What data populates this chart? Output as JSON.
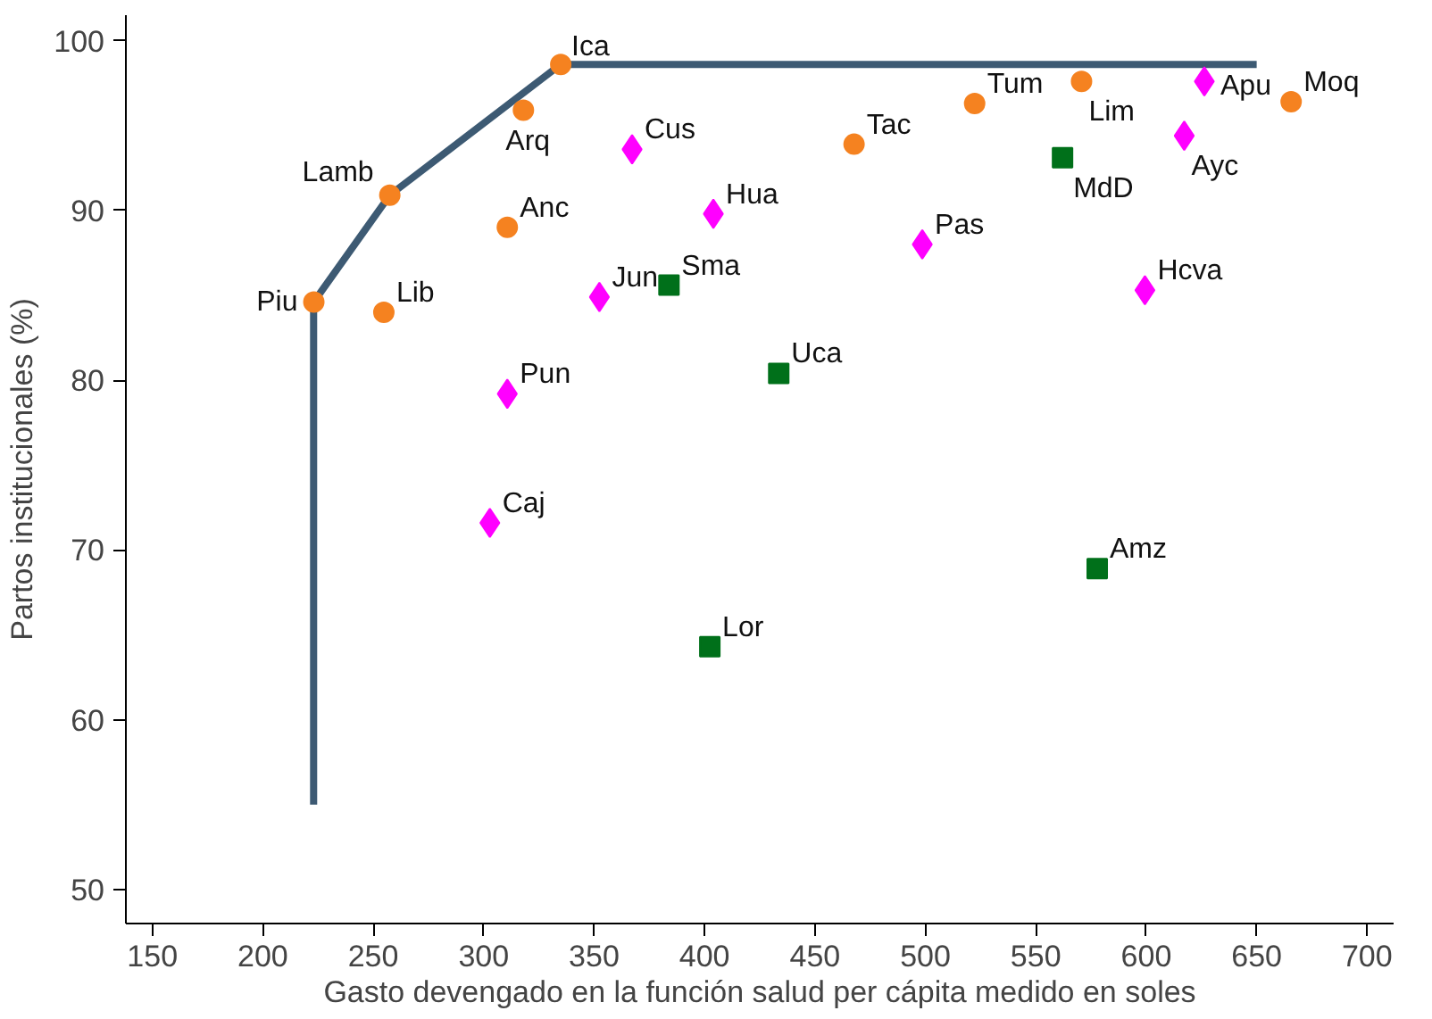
{
  "chart_data": {
    "type": "scatter",
    "xlabel": "Gasto devengado en la función salud per cápita medido en soles",
    "ylabel": "Partos institucionales (%)",
    "xlim": [
      138,
      712
    ],
    "ylim": [
      48,
      101.5
    ],
    "xticks": [
      150,
      200,
      250,
      300,
      350,
      400,
      450,
      500,
      550,
      600,
      650,
      700
    ],
    "yticks": [
      50,
      60,
      70,
      80,
      90,
      100
    ],
    "grid": false,
    "series": [
      {
        "type": "line",
        "color": "#3d5a73",
        "line_style": "solid",
        "marker": "none",
        "x": [
          223,
          223,
          257.5,
          334.9,
          650
        ],
        "values": [
          55,
          84.6,
          90.9,
          98.6,
          98.6
        ]
      },
      {
        "color": "#f58220",
        "marker": "circle",
        "x": [
          223.1,
          254.8,
          257.5,
          310.7,
          318,
          334.9,
          467.7,
          522.3,
          570.7,
          665.6
        ],
        "values": [
          84.6,
          84.0,
          90.9,
          89.0,
          95.9,
          98.6,
          93.9,
          96.3,
          97.6,
          96.4
        ]
      },
      {
        "color": "#ff00ff",
        "marker": "diamond",
        "x": [
          367.2,
          404,
          352.4,
          310.7,
          302.8,
          498.6,
          626.3,
          617.2,
          599.4
        ],
        "values": [
          93.6,
          89.8,
          84.9,
          79.2,
          71.6,
          88.0,
          97.6,
          94.4,
          85.3
        ]
      },
      {
        "color": "#00701a",
        "marker": "square",
        "x": [
          383.9,
          433.6,
          562.1,
          577.8,
          402.4
        ],
        "values": [
          85.6,
          80.4,
          93.1,
          68.9,
          64.3
        ]
      }
    ],
    "annotations": [
      {
        "text": "Piu",
        "x": 223.1,
        "y": 84.6
      },
      {
        "text": "Lib",
        "x": 254.8,
        "y": 84.0
      },
      {
        "text": "Lamb",
        "x": 257.5,
        "y": 90.9
      },
      {
        "text": "Anc",
        "x": 310.7,
        "y": 89.0
      },
      {
        "text": "Arq",
        "x": 318,
        "y": 95.9
      },
      {
        "text": "Ica",
        "x": 334.9,
        "y": 98.6
      },
      {
        "text": "Tac",
        "x": 467.7,
        "y": 93.9
      },
      {
        "text": "Tum",
        "x": 522.3,
        "y": 96.3
      },
      {
        "text": "Lim",
        "x": 570.7,
        "y": 97.6
      },
      {
        "text": "Moq",
        "x": 665.6,
        "y": 96.4
      },
      {
        "text": "Cus",
        "x": 367.2,
        "y": 93.6
      },
      {
        "text": "Hua",
        "x": 404,
        "y": 89.8
      },
      {
        "text": "Jun",
        "x": 352.4,
        "y": 84.9
      },
      {
        "text": "Pun",
        "x": 310.7,
        "y": 79.2
      },
      {
        "text": "Caj",
        "x": 302.8,
        "y": 71.6
      },
      {
        "text": "Pas",
        "x": 498.6,
        "y": 88.0
      },
      {
        "text": "Apu",
        "x": 626.3,
        "y": 97.6
      },
      {
        "text": "Ayc",
        "x": 617.2,
        "y": 94.4
      },
      {
        "text": "Hcva",
        "x": 599.4,
        "y": 85.3
      },
      {
        "text": "Sma",
        "x": 383.9,
        "y": 85.6
      },
      {
        "text": "Uca",
        "x": 433.6,
        "y": 80.4
      },
      {
        "text": "MdD",
        "x": 562.1,
        "y": 93.1
      },
      {
        "text": "Amz",
        "x": 577.8,
        "y": 68.9
      },
      {
        "text": "Lor",
        "x": 402.4,
        "y": 64.3
      }
    ]
  }
}
